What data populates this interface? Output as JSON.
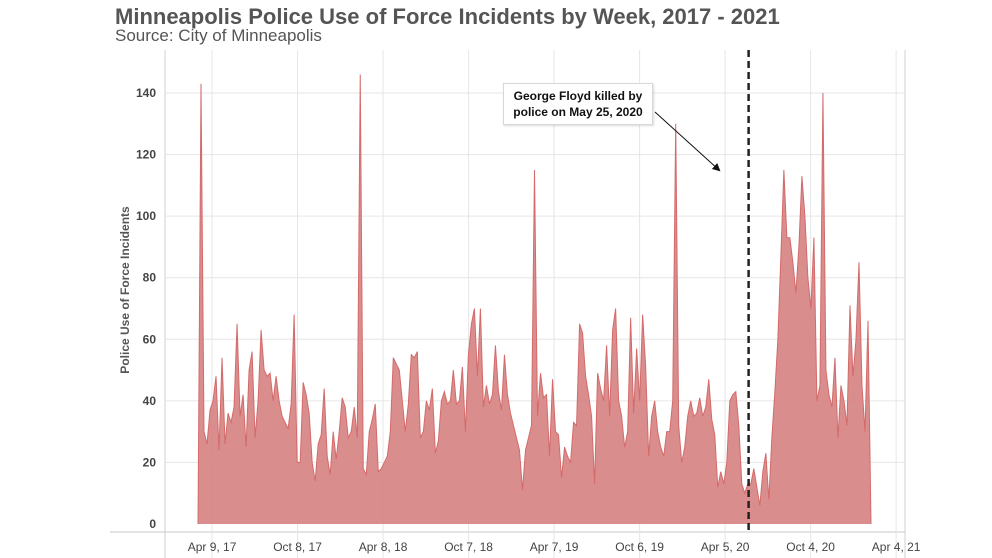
{
  "header": {
    "title": "Minneapolis Police Use of Force Incidents by Week, 2017 - 2021",
    "subtitle": "Source: City of Minneapolis"
  },
  "annotation": {
    "text": "George Floyd killed by police on May 25, 2020",
    "event_date": "2020-05-25"
  },
  "colors": {
    "area_fill": "#d88787",
    "area_line": "#d46a6a",
    "marker_line": "#222222",
    "grid": "#e6e6e6"
  },
  "chart_data": {
    "type": "area",
    "title": "Minneapolis Police Use of Force Incidents by Week, 2017 - 2021",
    "xlabel": "",
    "ylabel": "Police Use of Force Incidents",
    "ylim": [
      0,
      150
    ],
    "yticks": [
      0,
      20,
      40,
      60,
      80,
      100,
      120,
      140
    ],
    "xticks": [
      "Apr 9, 17",
      "Oct 8, 17",
      "Apr 8, 18",
      "Oct 7, 18",
      "Apr 7, 19",
      "Oct 6, 19",
      "Apr 5, 20",
      "Oct 4, 20",
      "Apr 4, 21"
    ],
    "grid": true,
    "x_start": "2017-01-01",
    "x_end": "2021-04-25",
    "series": [
      {
        "values": [
          0,
          143,
          30,
          26,
          37,
          40,
          48,
          24,
          54,
          26,
          36,
          33,
          38,
          65,
          35,
          42,
          25,
          50,
          56,
          28,
          40,
          63,
          50,
          48,
          49,
          40,
          48,
          40,
          35,
          33,
          31,
          39,
          68,
          20,
          20,
          46,
          42,
          36,
          20,
          14,
          26,
          29,
          44,
          22,
          16,
          30,
          21,
          30,
          41,
          38,
          28,
          30,
          38,
          28,
          146,
          18,
          16,
          30,
          34,
          39,
          17,
          18,
          20,
          22,
          30,
          54,
          52,
          50,
          40,
          30,
          39,
          55,
          54,
          56,
          28,
          30,
          40,
          37,
          44,
          23,
          27,
          40,
          43,
          39,
          40,
          50,
          39,
          40,
          51,
          30,
          55,
          65,
          70,
          48,
          70,
          38,
          45,
          39,
          42,
          58,
          43,
          37,
          55,
          42,
          36,
          32,
          28,
          24,
          11,
          24,
          28,
          32,
          115,
          35,
          49,
          41,
          42,
          22,
          47,
          30,
          29,
          15,
          25,
          22,
          20,
          33,
          32,
          65,
          62,
          48,
          42,
          35,
          13,
          49,
          44,
          40,
          58,
          35,
          63,
          70,
          40,
          35,
          25,
          30,
          67,
          36,
          57,
          40,
          68,
          51,
          22,
          35,
          40,
          30,
          25,
          22,
          30,
          30,
          40,
          130,
          32,
          20,
          25,
          35,
          40,
          35,
          36,
          41,
          35,
          38,
          47,
          34,
          29,
          12,
          17,
          13,
          20,
          40,
          42,
          43,
          32,
          13,
          10,
          13,
          13,
          18,
          12,
          6,
          17,
          23,
          8,
          28,
          43,
          60,
          87,
          115,
          93,
          93,
          85,
          75,
          90,
          113,
          100,
          80,
          70,
          93,
          40,
          45,
          140,
          50,
          42,
          38,
          54,
          28,
          45,
          40,
          32,
          71,
          48,
          60,
          85,
          45,
          30,
          66,
          0
        ]
      }
    ]
  }
}
